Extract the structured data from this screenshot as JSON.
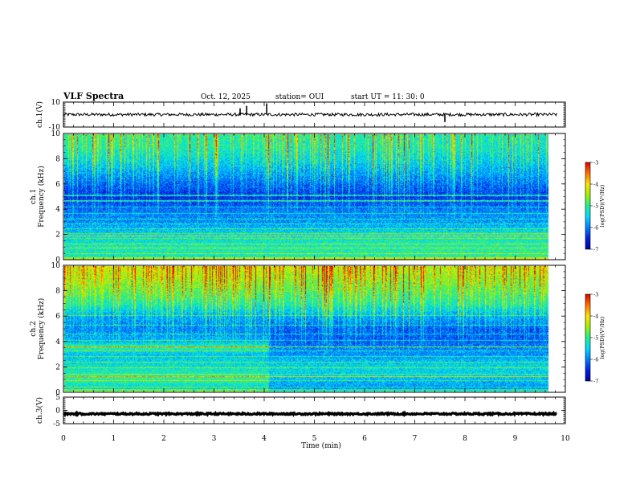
{
  "header": {
    "title": "VLF Spectra",
    "date": "Oct. 12, 2025",
    "station": "station= OUI",
    "start": "start  UT =   11: 30: 0"
  },
  "colors": {
    "colormap": [
      "#0000a0",
      "#0020e0",
      "#0080ff",
      "#00d8ff",
      "#20f090",
      "#a0f000",
      "#ffe000",
      "#ff7000",
      "#e00000"
    ],
    "trace": "#000000"
  },
  "chart_data": [
    {
      "type": "line",
      "name": "ch1-waveform",
      "ylabel": "ch.1(V)",
      "ylim": [
        -10,
        10
      ],
      "yticks": [
        "10",
        "-10"
      ],
      "baseline": 0,
      "spikes": [
        {
          "t": 3.52,
          "v": 5
        },
        {
          "t": 3.65,
          "v": 7
        },
        {
          "t": 4.05,
          "v": 9
        },
        {
          "t": 7.6,
          "v": -6
        }
      ],
      "noise_amplitude": 1.2
    },
    {
      "type": "heatmap",
      "name": "ch1-spectrogram",
      "ylabel": "ch.1\nFrequency (kHz)",
      "ylabel_lines": [
        "ch.1",
        "Frequency (kHz)"
      ],
      "ylim": [
        0,
        10
      ],
      "yticks": [
        "0",
        "2",
        "4",
        "6",
        "8",
        "10"
      ],
      "xlim": [
        0,
        9.83
      ],
      "colorbar": {
        "label": "log(PSD)(V²/Hz)",
        "range": [
          -7,
          -3
        ],
        "ticks": [
          "-3",
          "-4",
          "-5",
          "-6",
          "-7"
        ]
      },
      "lines_khz": [
        0.5,
        0.95,
        1.3,
        1.7,
        2.1,
        2.5,
        2.9,
        3.3,
        3.7,
        4.2,
        4.7,
        5.2
      ],
      "highlight_lines_khz": [
        1.9,
        4.75,
        5.1
      ],
      "profile": [
        {
          "f": 0.0,
          "t_lo": -5.3,
          "t_hi": -5.0
        },
        {
          "f": 1.0,
          "t_lo": -5.2,
          "t_hi": -5.1
        },
        {
          "f": 2.0,
          "t_lo": -5.5,
          "t_hi": -5.2
        },
        {
          "f": 3.0,
          "t_lo": -5.9,
          "t_hi": -5.8
        },
        {
          "f": 4.0,
          "t_lo": -6.1,
          "t_hi": -6.0
        },
        {
          "f": 5.0,
          "t_lo": -6.5,
          "t_hi": -6.4
        },
        {
          "f": 6.0,
          "t_lo": -6.2,
          "t_hi": -6.1
        },
        {
          "f": 7.0,
          "t_lo": -5.8,
          "t_hi": -5.8
        },
        {
          "f": 8.0,
          "t_lo": -5.4,
          "t_hi": -5.5
        },
        {
          "f": 9.0,
          "t_lo": -5.1,
          "t_hi": -5.3
        },
        {
          "f": 10.0,
          "t_lo": -5.0,
          "t_hi": -5.2
        }
      ],
      "sferic_density": 0.22
    },
    {
      "type": "heatmap",
      "name": "ch2-spectrogram",
      "ylabel": "ch.2\nFrequency (kHz)",
      "ylabel_lines": [
        "ch.2",
        "Frequency (kHz)"
      ],
      "ylim": [
        0,
        10
      ],
      "yticks": [
        "0",
        "2",
        "4",
        "6",
        "8",
        "10"
      ],
      "xlim": [
        0,
        9.83
      ],
      "colorbar": {
        "label": "log(PSD)(V²/Hz)",
        "range": [
          -7,
          -3
        ],
        "ticks": [
          "-3",
          "-4",
          "-5",
          "-6",
          "-7"
        ]
      },
      "lines_khz": [
        0.4,
        0.9,
        1.4,
        1.9,
        2.4,
        2.8,
        3.3,
        4.1,
        4.6,
        5.3,
        6.1
      ],
      "highlight_lines_khz": [
        3.6,
        1.2
      ],
      "step_time_min": 4.15,
      "profile": [
        {
          "f": 0.0,
          "t_lo": -5.6,
          "t_hi": -6.0
        },
        {
          "f": 1.0,
          "t_lo": -5.0,
          "t_hi": -5.6
        },
        {
          "f": 2.0,
          "t_lo": -5.3,
          "t_hi": -5.4
        },
        {
          "f": 3.0,
          "t_lo": -5.6,
          "t_hi": -5.9
        },
        {
          "f": 3.6,
          "t_lo": -5.0,
          "t_hi": -6.0
        },
        {
          "f": 4.0,
          "t_lo": -5.7,
          "t_hi": -6.2
        },
        {
          "f": 5.0,
          "t_lo": -6.0,
          "t_hi": -6.2
        },
        {
          "f": 6.0,
          "t_lo": -5.8,
          "t_hi": -5.8
        },
        {
          "f": 7.0,
          "t_lo": -5.2,
          "t_hi": -5.2
        },
        {
          "f": 8.0,
          "t_lo": -4.8,
          "t_hi": -4.9
        },
        {
          "f": 9.0,
          "t_lo": -4.5,
          "t_hi": -4.6
        },
        {
          "f": 10.0,
          "t_lo": -4.3,
          "t_hi": -4.4
        }
      ],
      "sferic_density": 0.3
    },
    {
      "type": "line",
      "name": "ch3-waveform",
      "ylabel": "ch.3(V)",
      "ylim": [
        -5,
        5
      ],
      "yticks": [
        "5",
        "0",
        "-5"
      ],
      "baseline": -1.3,
      "noise_amplitude": 0.3
    }
  ],
  "xaxis": {
    "label": "Time (min)",
    "range": [
      0,
      10
    ],
    "ticks": [
      "0",
      "1",
      "2",
      "3",
      "4",
      "5",
      "6",
      "7",
      "8",
      "9",
      "10"
    ]
  }
}
